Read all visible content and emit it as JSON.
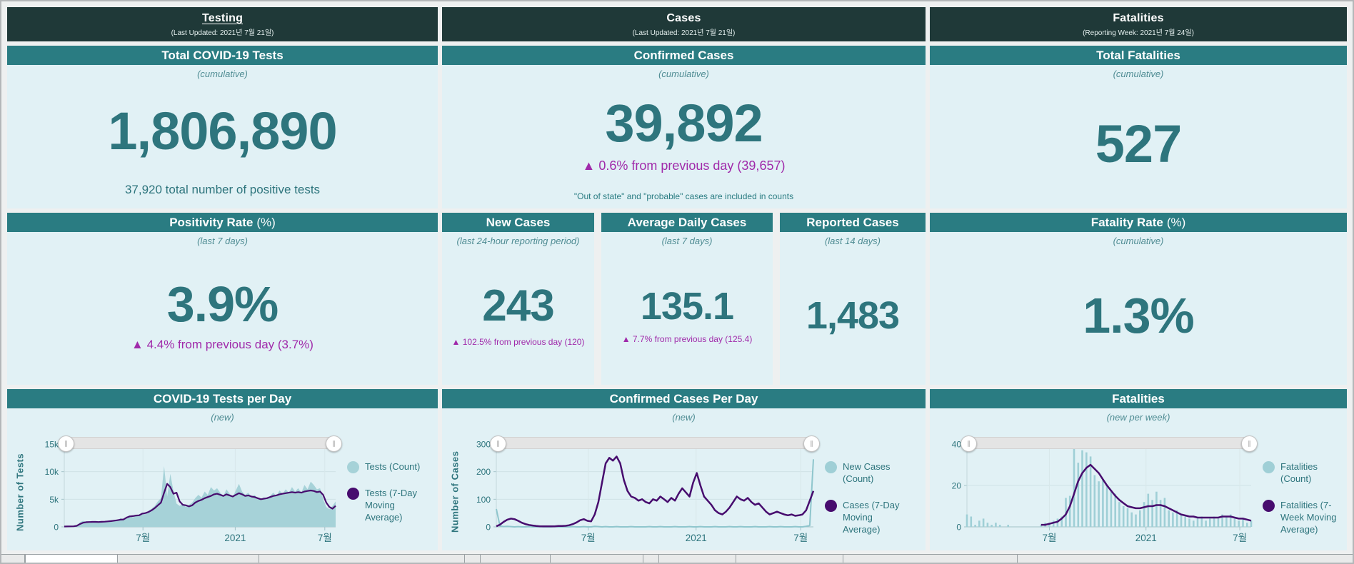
{
  "theme": {
    "band_bg": "#1f3938",
    "header_bg": "#2a7c82",
    "card_bg": "#e1f1f5",
    "value_teal": "#2e757d",
    "change_purple": "#a02aaa",
    "chart_teal": "#a6d2d8",
    "chart_purple": "#470c6e"
  },
  "sections": {
    "testing": {
      "title": "Testing",
      "subtitle": "(Last Updated: 2021년 7월 21일)",
      "total_tests": {
        "header": "Total COVID-19 Tests",
        "period": "(cumulative)",
        "value": "1,806,890",
        "note": "37,920 total number of positive tests"
      },
      "positivity": {
        "header_main": "Positivity Rate",
        "header_suffix": "(%)",
        "period": "(last 7 days)",
        "value": "3.9%",
        "change": "▲ 4.4% from previous day (3.7%)"
      }
    },
    "cases": {
      "title": "Cases",
      "subtitle": "(Last Updated: 2021년 7월 21일)",
      "confirmed": {
        "header": "Confirmed Cases",
        "period": "(cumulative)",
        "value": "39,892",
        "change": "▲ 0.6% from previous day (39,657)",
        "note": "\"Out of state\" and \"probable\" cases are included in counts"
      },
      "new_cases": {
        "header": "New Cases",
        "period": "(last 24-hour reporting period)",
        "value": "243",
        "change": "▲ 102.5% from previous day (120)"
      },
      "avg_daily": {
        "header": "Average Daily Cases",
        "period": "(last 7 days)",
        "value": "135.1",
        "change": "▲ 7.7% from previous day (125.4)"
      },
      "reported": {
        "header": "Reported Cases",
        "period": "(last 14 days)",
        "value": "1,483"
      }
    },
    "fatalities": {
      "title": "Fatalities",
      "subtitle": "(Reporting Week: 2021년 7월 24일)",
      "total": {
        "header": "Total Fatalities",
        "period": "(cumulative)",
        "value": "527"
      },
      "rate": {
        "header_main": "Fatality Rate",
        "header_suffix": "(%)",
        "period": "(cumulative)",
        "value": "1.3%"
      }
    }
  },
  "chart_data": [
    {
      "type": "area",
      "title": "COVID-19 Tests per Day",
      "subtitle": "(new)",
      "ylabel": "Number of Tests",
      "xlabel": "",
      "ylim": [
        0,
        15000
      ],
      "yticks": [
        0,
        5000,
        10000,
        15000
      ],
      "ytick_labels": [
        "0",
        "5k",
        "10k",
        "15k"
      ],
      "xtick_labels": [
        "7월",
        "2021",
        "7월"
      ],
      "xtick_pos": [
        0.29,
        0.63,
        0.96
      ],
      "grid": true,
      "legend_position": "right",
      "series": [
        {
          "name": "Tests (Count)",
          "style": "area",
          "color": "#a6d2d8",
          "values": [
            60,
            80,
            100,
            90,
            120,
            800,
            1100,
            900,
            700,
            1000,
            900,
            800,
            1000,
            950,
            1100,
            1050,
            1300,
            1100,
            1600,
            1300,
            1800,
            2100,
            1700,
            2200,
            2000,
            2600,
            2300,
            2900,
            3300,
            3800,
            4600,
            5200,
            11000,
            5500,
            9600,
            6500,
            4200,
            3800,
            4200,
            3600,
            4000,
            4400,
            5200,
            5800,
            5300,
            6400,
            5800,
            7200,
            6600,
            7000,
            6200,
            5600,
            6800,
            6000,
            5400,
            6600,
            7800,
            6400,
            5800,
            6200,
            5400,
            5800,
            5200,
            4800,
            5400,
            5000,
            5600,
            6200,
            5600,
            6600,
            6000,
            6800,
            6200,
            7200,
            6400,
            7000,
            6200,
            7600,
            6800,
            8200,
            7600,
            6800,
            7000,
            5000,
            3600,
            3200,
            3800,
            4600
          ]
        },
        {
          "name": "Tests (7-Day Moving Average)",
          "style": "line",
          "color": "#470c6e",
          "width": 2.2,
          "values": [
            70,
            80,
            90,
            100,
            200,
            500,
            750,
            850,
            880,
            900,
            900,
            880,
            920,
            950,
            1000,
            1050,
            1120,
            1200,
            1300,
            1350,
            1700,
            1900,
            1950,
            2050,
            2100,
            2400,
            2500,
            2700,
            3000,
            3400,
            3900,
            4400,
            6200,
            7800,
            7200,
            6000,
            6200,
            4600,
            4000,
            3900,
            3700,
            3900,
            4400,
            4700,
            4900,
            5200,
            5400,
            5600,
            5900,
            6000,
            5800,
            5600,
            5900,
            5700,
            5500,
            5800,
            6100,
            5900,
            5600,
            5700,
            5500,
            5400,
            5200,
            5000,
            5100,
            5200,
            5400,
            5600,
            5700,
            5900,
            6000,
            6100,
            6200,
            6300,
            6200,
            6300,
            6200,
            6400,
            6500,
            6600,
            6500,
            6300,
            6400,
            5800,
            4400,
            3600,
            3300,
            3800
          ]
        }
      ]
    },
    {
      "type": "line",
      "title": "Confirmed Cases Per Day",
      "subtitle": "(new)",
      "ylabel": "Number of Cases",
      "xlabel": "",
      "ylim": [
        0,
        300
      ],
      "yticks": [
        0,
        100,
        200,
        300
      ],
      "ytick_labels": [
        "0",
        "100",
        "200",
        "300"
      ],
      "xtick_labels": [
        "7월",
        "2021",
        "7월"
      ],
      "xtick_pos": [
        0.29,
        0.63,
        0.96
      ],
      "grid": true,
      "legend_position": "right",
      "series": [
        {
          "name": "New Cases (Count)",
          "style": "line",
          "color": "#8fc6cd",
          "width": 2,
          "legend_color": "#9fcfd6",
          "values": [
            65,
            3,
            1,
            2,
            1,
            0,
            1,
            0,
            0,
            1,
            0,
            0,
            1,
            0,
            0,
            0,
            1,
            0,
            0,
            0,
            0,
            1,
            0,
            0,
            1,
            0,
            0,
            2,
            1,
            0,
            1,
            0,
            0,
            1,
            0,
            0,
            0,
            1,
            0,
            0,
            0,
            0,
            1,
            0,
            0,
            1,
            0,
            0,
            0,
            1,
            0,
            0,
            0,
            1,
            0,
            0,
            1,
            0,
            0,
            0,
            1,
            0,
            0,
            0,
            1,
            0,
            0,
            1,
            0,
            0,
            0,
            1,
            0,
            0,
            0,
            1,
            0,
            0,
            1,
            0,
            0,
            0,
            1,
            0,
            0,
            2,
            5,
            245
          ]
        },
        {
          "name": "Cases (7-Day Moving Average)",
          "style": "line",
          "color": "#470c6e",
          "width": 2.5,
          "values": [
            2,
            8,
            18,
            26,
            30,
            28,
            22,
            15,
            10,
            7,
            5,
            3,
            2,
            2,
            2,
            2,
            2,
            3,
            3,
            4,
            6,
            10,
            16,
            24,
            28,
            22,
            20,
            45,
            90,
            160,
            230,
            250,
            240,
            255,
            230,
            170,
            130,
            110,
            105,
            95,
            100,
            90,
            85,
            100,
            95,
            110,
            100,
            90,
            105,
            95,
            120,
            140,
            125,
            110,
            160,
            195,
            150,
            110,
            95,
            80,
            60,
            50,
            45,
            55,
            70,
            90,
            110,
            100,
            95,
            105,
            90,
            80,
            85,
            70,
            55,
            45,
            50,
            55,
            50,
            45,
            42,
            45,
            40,
            42,
            45,
            60,
            95,
            130
          ]
        }
      ]
    },
    {
      "type": "bar",
      "title": "Fatalities",
      "subtitle": "(new per week)",
      "ylabel": "",
      "xlabel": "",
      "ylim": [
        0,
        40
      ],
      "yticks": [
        0,
        20,
        40
      ],
      "ytick_labels": [
        "0",
        "20",
        "40"
      ],
      "xtick_labels": [
        "7월",
        "2021",
        "7월"
      ],
      "xtick_pos": [
        0.29,
        0.63,
        0.96
      ],
      "grid": true,
      "legend_position": "right",
      "series": [
        {
          "name": "Fatalities (Count)",
          "style": "bars",
          "color": "#9fcfd6",
          "values": [
            6,
            5,
            1,
            3,
            4,
            2,
            1,
            2,
            1,
            0,
            1,
            0,
            0,
            0,
            0,
            0,
            0,
            0,
            1,
            2,
            2,
            3,
            4,
            5,
            14,
            15,
            38,
            31,
            37,
            36,
            34,
            25,
            22,
            23,
            20,
            17,
            16,
            12,
            10,
            9,
            7,
            6,
            8,
            12,
            16,
            13,
            17,
            13,
            14,
            8,
            7,
            8,
            6,
            5,
            4,
            3,
            4,
            5,
            3,
            4,
            5,
            4,
            6,
            5,
            6,
            4,
            3,
            4,
            2,
            3
          ]
        },
        {
          "name": "Fatalities (7-Week Moving Average)",
          "style": "line",
          "color": "#470c6e",
          "width": 2.5,
          "values": [
            null,
            null,
            null,
            null,
            null,
            null,
            null,
            null,
            null,
            null,
            null,
            null,
            null,
            null,
            null,
            null,
            null,
            null,
            1,
            1,
            1.5,
            2,
            2.5,
            4,
            6,
            10,
            16,
            22,
            26,
            28.5,
            30,
            28,
            26,
            23,
            20,
            17.5,
            15,
            13,
            11.5,
            10,
            9.5,
            9,
            9,
            9.5,
            10,
            10,
            10.5,
            10.5,
            10,
            9,
            8,
            7,
            6,
            5.5,
            5,
            5,
            4.5,
            4.5,
            4.5,
            4.5,
            4.5,
            4.5,
            5,
            5,
            5,
            4.5,
            4,
            4,
            3.5,
            3
          ]
        }
      ]
    }
  ],
  "slider": {
    "handle_glyph": "∥"
  }
}
